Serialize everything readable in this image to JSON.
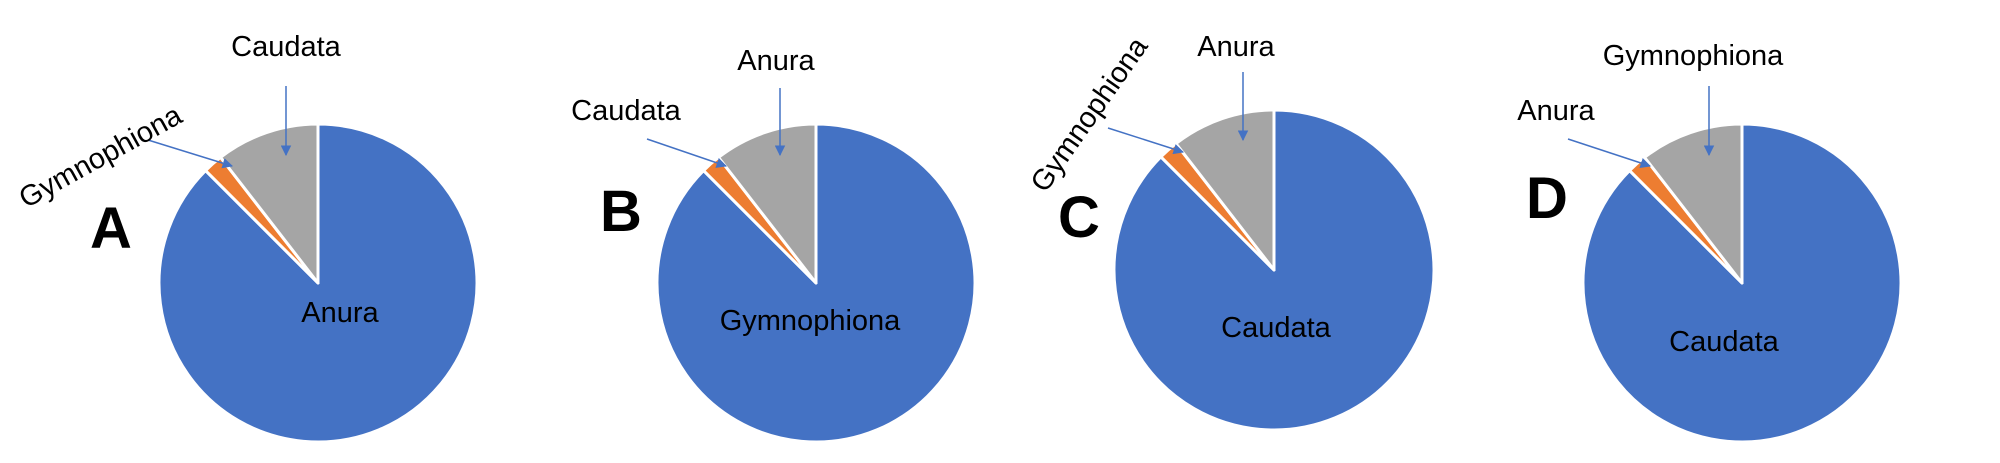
{
  "colors": {
    "blue": "#4472C4",
    "orange": "#ED7D31",
    "gray": "#A5A5A5",
    "callout": "#4472C4"
  },
  "chart_data": [
    {
      "type": "pie",
      "panel": "A",
      "slices": [
        {
          "label": "Anura",
          "value": 0.875,
          "color": "blue"
        },
        {
          "label": "Gymnophiona",
          "value": 0.02,
          "color": "orange"
        },
        {
          "label": "Caudata",
          "value": 0.105,
          "color": "gray"
        }
      ],
      "inside_label": "Anura",
      "callouts": [
        "Gymnophiona",
        "Caudata"
      ]
    },
    {
      "type": "pie",
      "panel": "B",
      "slices": [
        {
          "label": "Gymnophiona",
          "value": 0.875,
          "color": "blue"
        },
        {
          "label": "Caudata",
          "value": 0.02,
          "color": "orange"
        },
        {
          "label": "Anura",
          "value": 0.105,
          "color": "gray"
        }
      ],
      "inside_label": "Gymnophiona",
      "callouts": [
        "Caudata",
        "Anura"
      ]
    },
    {
      "type": "pie",
      "panel": "C",
      "slices": [
        {
          "label": "Caudata",
          "value": 0.875,
          "color": "blue"
        },
        {
          "label": "Gymnophiona",
          "value": 0.02,
          "color": "orange"
        },
        {
          "label": "Anura",
          "value": 0.105,
          "color": "gray"
        }
      ],
      "inside_label": "Caudata",
      "callouts": [
        "Gymnophiona",
        "Anura"
      ]
    },
    {
      "type": "pie",
      "panel": "D",
      "slices": [
        {
          "label": "Caudata",
          "value": 0.875,
          "color": "blue"
        },
        {
          "label": "Anura",
          "value": 0.02,
          "color": "orange"
        },
        {
          "label": "Gymnophiona",
          "value": 0.105,
          "color": "gray"
        }
      ],
      "inside_label": "Caudata",
      "callouts": [
        "Anura",
        "Gymnophiona"
      ]
    }
  ]
}
